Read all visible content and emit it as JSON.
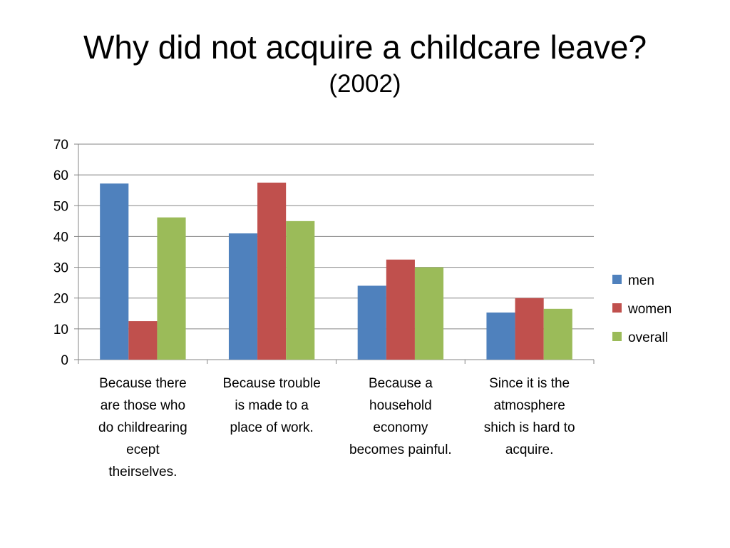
{
  "slide": {
    "title": "Why did not acquire a childcare leave?",
    "subtitle": "(2002)"
  },
  "chart_data": {
    "type": "bar",
    "categories": [
      "Because there are those who do childrearing ecept theirselves.",
      "Because trouble is made to a place of work.",
      "Because a household economy becomes painful.",
      "Since it is the atmosphere shich is hard to acquire."
    ],
    "category_lines": [
      [
        "Because there",
        "are those who",
        "do childrearing",
        "ecept",
        "theirselves."
      ],
      [
        "Because trouble",
        "is made to a",
        "place of work."
      ],
      [
        "Because a",
        "household",
        "economy",
        "becomes painful."
      ],
      [
        "Since it is the",
        "atmosphere",
        "shich is hard to",
        "acquire."
      ]
    ],
    "series": [
      {
        "name": "men",
        "color": "#4F81BD",
        "values": [
          57.2,
          41,
          24,
          15.3
        ]
      },
      {
        "name": "women",
        "color": "#C0504D",
        "values": [
          12.5,
          57.5,
          32.5,
          20
        ]
      },
      {
        "name": "overall",
        "color": "#9BBB59",
        "values": [
          46.2,
          45,
          30,
          16.5
        ]
      }
    ],
    "ylim": [
      0,
      70
    ],
    "yticks": [
      0,
      10,
      20,
      30,
      40,
      50,
      60,
      70
    ],
    "grid": true,
    "legend_position": "right"
  }
}
